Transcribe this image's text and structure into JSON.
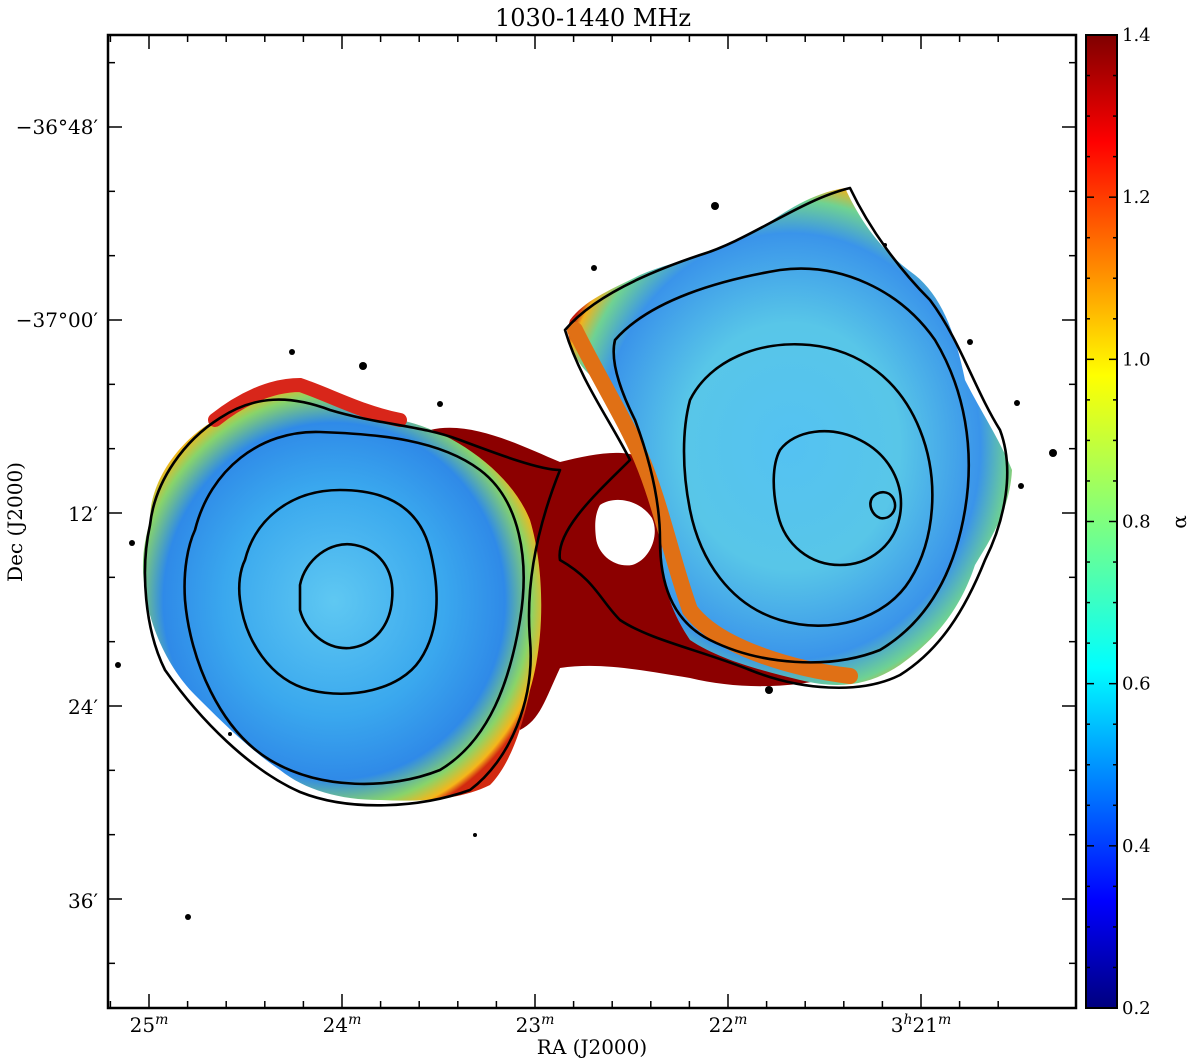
{
  "figure": {
    "title": "1030-1440 MHz",
    "xlabel": "RA (J2000)",
    "ylabel": "Dec (J2000)",
    "colorbar_label": "α",
    "x_ticks": [
      {
        "label": "25",
        "sup": "m"
      },
      {
        "label": "24",
        "sup": "m"
      },
      {
        "label": "23",
        "sup": "m"
      },
      {
        "label": "22",
        "sup": "m"
      },
      {
        "label": "3",
        "sup": "h",
        "label2": "21",
        "sup2": "m"
      }
    ],
    "y_ticks": [
      "−36°48′",
      "−37°00′",
      "12′",
      "24′",
      "36′"
    ],
    "colorbar": {
      "range": [
        0.2,
        1.4
      ],
      "ticks": [
        "1.4",
        "1.2",
        "1.0",
        "0.8",
        "0.6",
        "0.4",
        "0.2"
      ],
      "colormap": "jet"
    },
    "colors": {
      "contour": "#000000",
      "background": "#ffffff",
      "jet_stops": [
        "#00007f",
        "#0000ff",
        "#007fff",
        "#00ffff",
        "#7fff7f",
        "#ffff00",
        "#ff7f00",
        "#ff0000",
        "#7f0000"
      ]
    }
  }
}
